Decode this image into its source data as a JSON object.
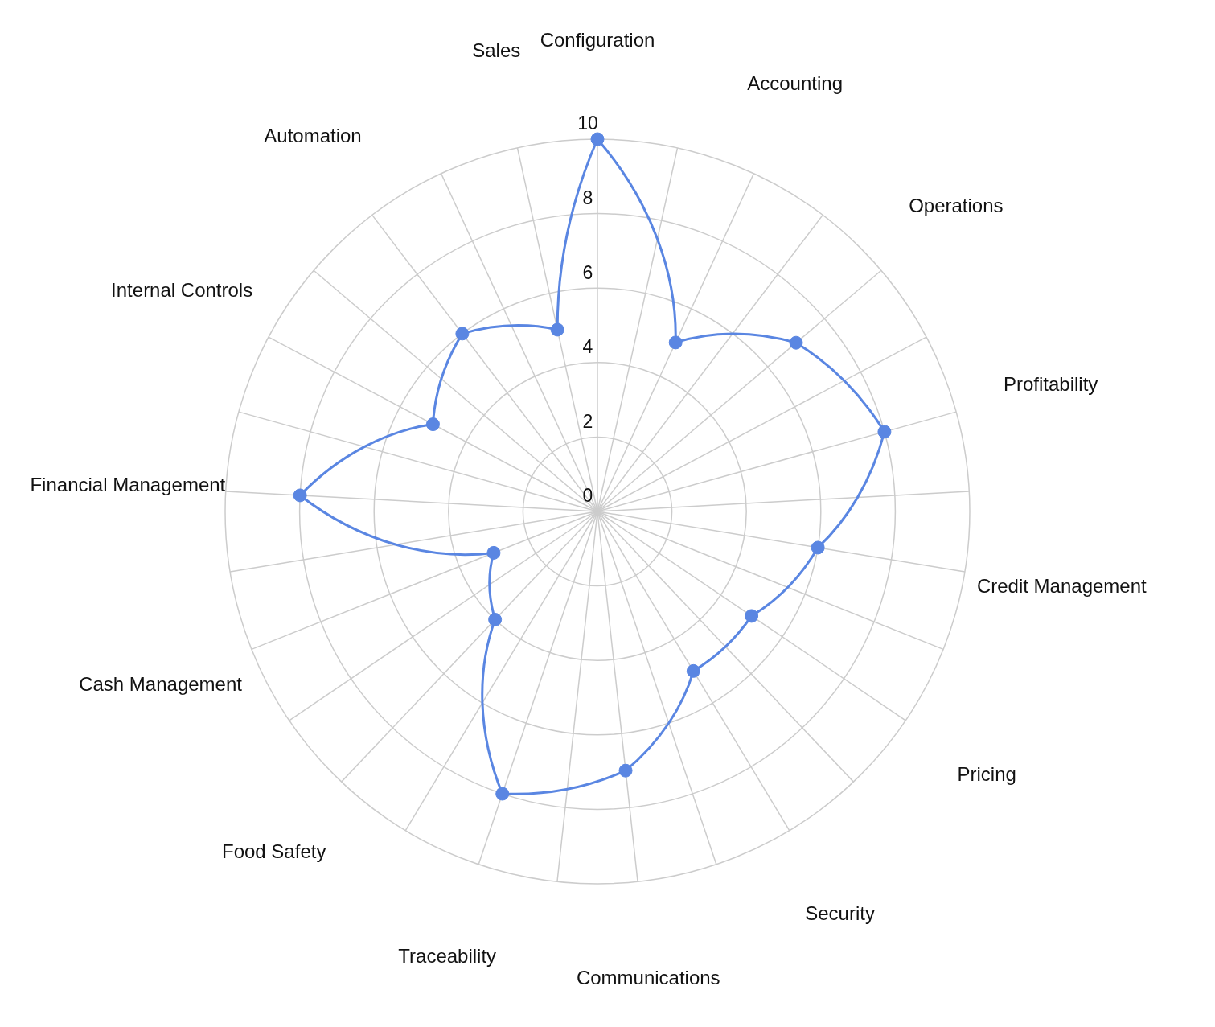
{
  "chart_data": {
    "type": "radar",
    "categories": [
      "Configuration",
      "Accounting",
      "Operations",
      "Profitability",
      "Credit Management",
      "Pricing",
      "Security",
      "Communications",
      "Traceability",
      "Food Safety",
      "Cash Management",
      "Financial Management",
      "Internal Controls",
      "Automation",
      "Sales"
    ],
    "series": [
      {
        "color": "#5a86e2",
        "values": [
          10,
          5,
          7,
          8,
          6,
          5,
          5,
          7,
          8,
          4,
          3,
          8,
          5,
          6,
          5
        ]
      }
    ],
    "ylim": [
      0,
      10
    ],
    "yticks": [
      0,
      2,
      4,
      6,
      8,
      10
    ],
    "grid": true,
    "marker": "circle",
    "line_style": "solid"
  }
}
